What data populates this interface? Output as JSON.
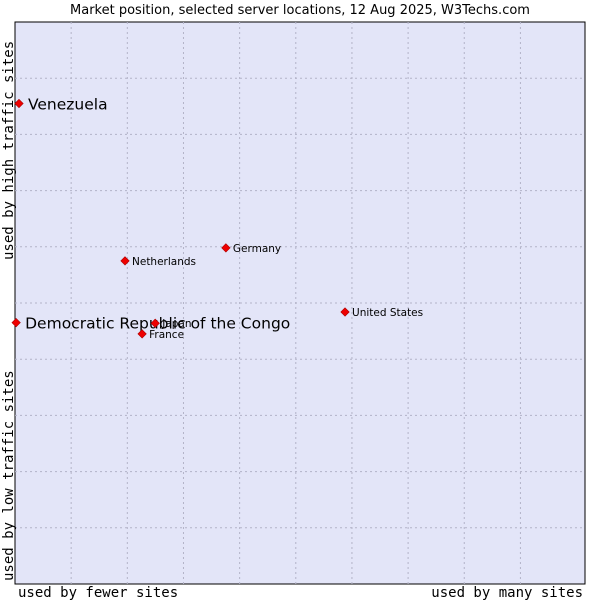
{
  "chart_data": {
    "type": "scatter",
    "title": "Market position, selected server locations, 12 Aug 2025, W3Techs.com",
    "xlabel_low": "used by fewer sites",
    "xlabel_high": "used by many sites",
    "ylabel_low": "used by low traffic sites",
    "ylabel_high": "used by high traffic sites",
    "xlim": [
      0,
      10
    ],
    "ylim": [
      0,
      10
    ],
    "grid": true,
    "colors": {
      "plot_bg": "#e3e5f8",
      "grid": "#b3b3c8",
      "point": "#ee0000",
      "point_stroke": "#aa0000"
    },
    "points": [
      {
        "name": "Venezuela",
        "x": 0.07,
        "y": 8.55,
        "label_size": "large",
        "label_anchor": "right"
      },
      {
        "name": "Democratic Republic of the Congo",
        "x": 0.02,
        "y": 4.65,
        "label_size": "large",
        "label_anchor": "right"
      },
      {
        "name": "Netherlands",
        "x": 1.93,
        "y": 5.75,
        "label_size": "small",
        "label_anchor": "right"
      },
      {
        "name": "Germany",
        "x": 3.7,
        "y": 5.98,
        "label_size": "small",
        "label_anchor": "right"
      },
      {
        "name": "United States",
        "x": 5.79,
        "y": 4.84,
        "label_size": "small",
        "label_anchor": "right"
      },
      {
        "name": "Japan",
        "x": 2.46,
        "y": 4.64,
        "label_size": "small",
        "label_anchor": "right"
      },
      {
        "name": "France",
        "x": 2.23,
        "y": 4.45,
        "label_size": "small",
        "label_anchor": "right"
      }
    ]
  }
}
